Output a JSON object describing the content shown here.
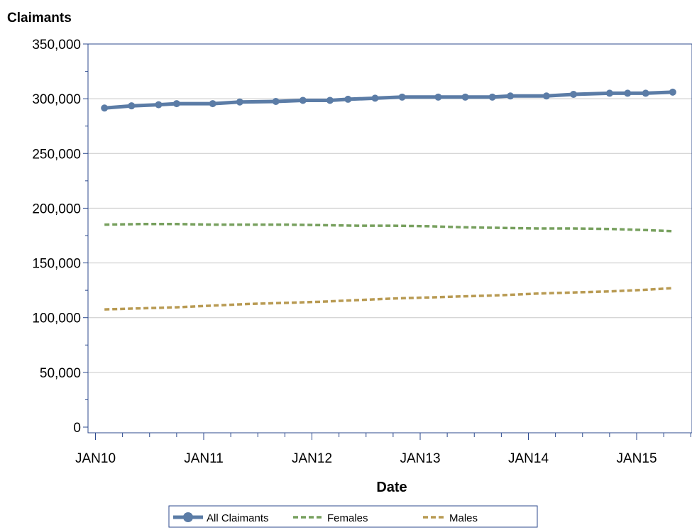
{
  "chart_data": {
    "type": "line",
    "ylabel": "Claimants",
    "xlabel": "Date",
    "ylim": [
      0,
      350000
    ],
    "y_ticks": [
      0,
      50000,
      100000,
      150000,
      200000,
      250000,
      300000,
      350000
    ],
    "y_tick_labels": [
      "0",
      "50,000",
      "100,000",
      "150,000",
      "200,000",
      "250,000",
      "300,000",
      "350,000"
    ],
    "x_tick_labels": [
      "JAN10",
      "JAN11",
      "JAN12",
      "JAN13",
      "JAN14",
      "JAN15"
    ],
    "x_tick_dates": [
      "2010-01",
      "2011-01",
      "2012-01",
      "2013-01",
      "2014-01",
      "2015-01"
    ],
    "xlim": [
      "2009-11",
      "2015-08"
    ],
    "grid": true,
    "legend_position": "bottom",
    "series": [
      {
        "name": "All Claimants",
        "color": "#5b7ca6",
        "style": "solid-markers",
        "x": [
          "2010-02",
          "2010-05",
          "2010-08",
          "2010-10",
          "2011-02",
          "2011-05",
          "2011-09",
          "2011-12",
          "2012-03",
          "2012-05",
          "2012-08",
          "2012-11",
          "2013-03",
          "2013-06",
          "2013-09",
          "2013-11",
          "2014-03",
          "2014-06",
          "2014-10",
          "2014-12",
          "2015-02",
          "2015-05"
        ],
        "y": [
          291500,
          293500,
          294500,
          295500,
          295500,
          297000,
          297500,
          298500,
          298500,
          299500,
          300500,
          301500,
          301500,
          301500,
          301500,
          302500,
          302500,
          304000,
          305000,
          305000,
          305000,
          306000
        ]
      },
      {
        "name": "Females",
        "color": "#77a05e",
        "style": "dashed",
        "x": [
          "2010-02",
          "2010-06",
          "2010-10",
          "2011-02",
          "2011-06",
          "2011-10",
          "2012-02",
          "2012-06",
          "2012-10",
          "2013-02",
          "2013-06",
          "2013-10",
          "2014-02",
          "2014-06",
          "2014-10",
          "2015-02",
          "2015-05"
        ],
        "y": [
          185000,
          185500,
          185500,
          185000,
          185000,
          185000,
          184500,
          184000,
          184000,
          183500,
          182500,
          182000,
          181500,
          181500,
          181000,
          180000,
          179000
        ]
      },
      {
        "name": "Males",
        "color": "#b89a52",
        "style": "dashed",
        "x": [
          "2010-02",
          "2010-06",
          "2010-10",
          "2011-02",
          "2011-06",
          "2011-10",
          "2012-02",
          "2012-06",
          "2012-10",
          "2013-02",
          "2013-06",
          "2013-10",
          "2014-02",
          "2014-06",
          "2014-10",
          "2015-02",
          "2015-05"
        ],
        "y": [
          107500,
          108500,
          109500,
          111000,
          112500,
          113500,
          114500,
          116000,
          117500,
          118500,
          119500,
          120500,
          122000,
          123000,
          124000,
          125500,
          127000
        ]
      }
    ]
  }
}
